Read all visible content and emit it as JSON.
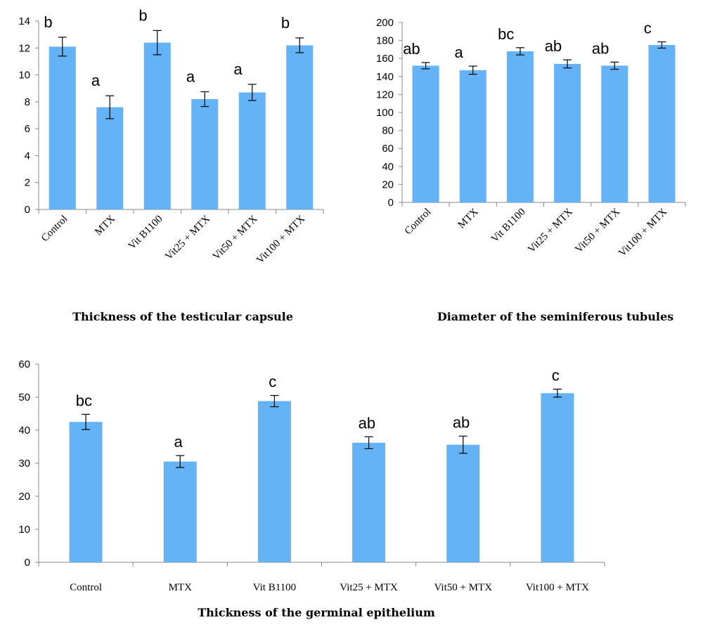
{
  "colors": {
    "bar": "#63b3f6",
    "axis": "#888888"
  },
  "chart_data": [
    {
      "type": "bar",
      "title": "Thickness of the testicular capsule",
      "categories": [
        "Control",
        "MTX",
        "Vit B1100",
        "Vit25 + MTX",
        "Vit50 + MTX",
        "Vit100 + MTX"
      ],
      "values": [
        12.1,
        7.6,
        12.4,
        8.2,
        8.7,
        12.2
      ],
      "errors": [
        0.7,
        0.85,
        0.9,
        0.55,
        0.6,
        0.55
      ],
      "significance": [
        "b",
        "a",
        "b",
        "a",
        "a",
        "b"
      ],
      "ylim": [
        0,
        14
      ],
      "yticks": [
        0,
        2,
        4,
        6,
        8,
        10,
        12,
        14
      ]
    },
    {
      "type": "bar",
      "title": "Diameter of the seminiferous tubules",
      "categories": [
        "Control",
        "MTX",
        "Vit B1100",
        "Vit25 + MTX",
        "Vit50 + MTX",
        "Vit100 + MTX"
      ],
      "values": [
        152,
        147,
        168,
        154,
        152,
        175
      ],
      "errors": [
        3.5,
        4.5,
        4,
        4.5,
        4,
        3.5
      ],
      "significance": [
        "ab",
        "a",
        "bc",
        "ab",
        "ab",
        "c"
      ],
      "ylim": [
        0,
        200
      ],
      "yticks": [
        0,
        20,
        40,
        60,
        80,
        100,
        120,
        140,
        160,
        180,
        200
      ]
    },
    {
      "type": "bar",
      "title": "Thickness of the germinal epithelium",
      "categories": [
        "Control",
        "MTX",
        "Vit B1100",
        "Vit25 + MTX",
        "Vit50 + MTX",
        "Vit100 + MTX"
      ],
      "values": [
        42.5,
        30.5,
        48.8,
        36.2,
        35.6,
        51.2
      ],
      "errors": [
        2.3,
        1.8,
        1.7,
        1.8,
        2.6,
        1.2
      ],
      "significance": [
        "bc",
        "a",
        "c",
        "ab",
        "ab",
        "c"
      ],
      "ylim": [
        0,
        60
      ],
      "yticks": [
        0,
        10,
        20,
        30,
        40,
        50,
        60
      ]
    }
  ]
}
